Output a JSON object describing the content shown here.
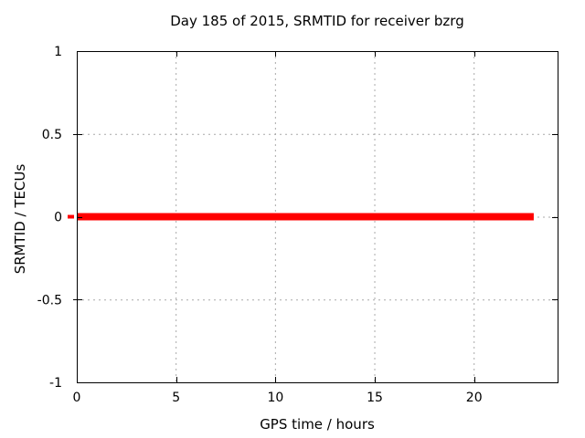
{
  "chart_data": {
    "type": "line",
    "title": "Day 185 of 2015, SRMTID for receiver bzrg",
    "xlabel": "GPS time / hours",
    "ylabel": "SRMTID / TECUs",
    "xlim": [
      0,
      24.2
    ],
    "ylim": [
      -1,
      1
    ],
    "x_ticks": [
      0,
      5,
      10,
      15,
      20
    ],
    "x_tick_labels": [
      "0",
      "5",
      "10",
      "15",
      "20"
    ],
    "y_ticks": [
      -1,
      -0.5,
      0,
      0.5,
      1
    ],
    "y_tick_labels": [
      "-1",
      "-0.5",
      "0",
      "0.5",
      "1"
    ],
    "grid": true,
    "grid_x_ticks": [
      5,
      10,
      15,
      20
    ],
    "grid_y_ticks": [
      -0.5,
      0,
      0.5
    ],
    "legend": "none",
    "series": [
      {
        "name": "SRMTID",
        "color": "#ff0000",
        "linewidth": 8,
        "x": [
          0,
          23.0
        ],
        "y": [
          0,
          0
        ]
      }
    ],
    "colors": {
      "background": "#ffffff",
      "axis": "#000000",
      "grid": "#a9a9a9",
      "text": "#000000"
    }
  }
}
